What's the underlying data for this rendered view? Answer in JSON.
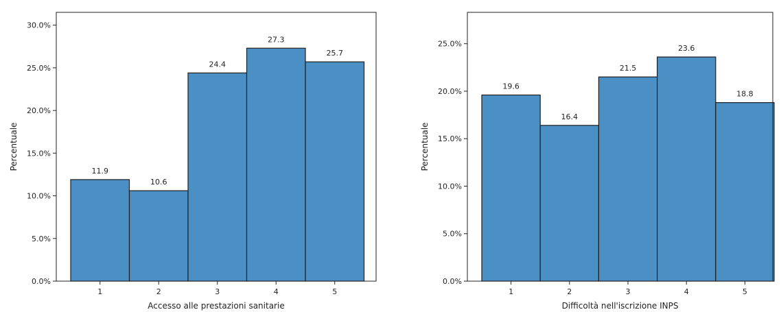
{
  "chart_data": [
    {
      "type": "bar",
      "categories": [
        "1",
        "2",
        "3",
        "4",
        "5"
      ],
      "values": [
        11.9,
        10.6,
        24.4,
        27.3,
        25.7
      ],
      "value_labels": [
        "11.9",
        "10.6",
        "24.4",
        "27.3",
        "25.7"
      ],
      "xlabel": "Accesso alle prestazioni sanitarie",
      "ylabel": "Percentuale",
      "ylim": [
        0,
        31.5
      ],
      "yticks": [
        0,
        5,
        10,
        15,
        20,
        25,
        30
      ],
      "ytick_labels": [
        "0.0%",
        "5.0%",
        "10.0%",
        "15.0%",
        "20.0%",
        "25.0%",
        "30.0%"
      ],
      "grid": false,
      "bar_color": "#4a90c4",
      "edge_color": "#1f1f1f"
    },
    {
      "type": "bar",
      "categories": [
        "1",
        "2",
        "3",
        "4",
        "5"
      ],
      "values": [
        19.6,
        16.4,
        21.5,
        23.6,
        18.8
      ],
      "value_labels": [
        "19.6",
        "16.4",
        "21.5",
        "23.6",
        "18.8"
      ],
      "xlabel": "Difficoltà nell'iscrizione INPS",
      "ylabel": "Percentuale",
      "ylim": [
        0,
        28.3
      ],
      "yticks": [
        0,
        5,
        10,
        15,
        20,
        25
      ],
      "ytick_labels": [
        "0.0%",
        "5.0%",
        "10.0%",
        "15.0%",
        "20.0%",
        "25.0%"
      ],
      "grid": false,
      "bar_color": "#4a90c4",
      "edge_color": "#1f1f1f"
    }
  ]
}
